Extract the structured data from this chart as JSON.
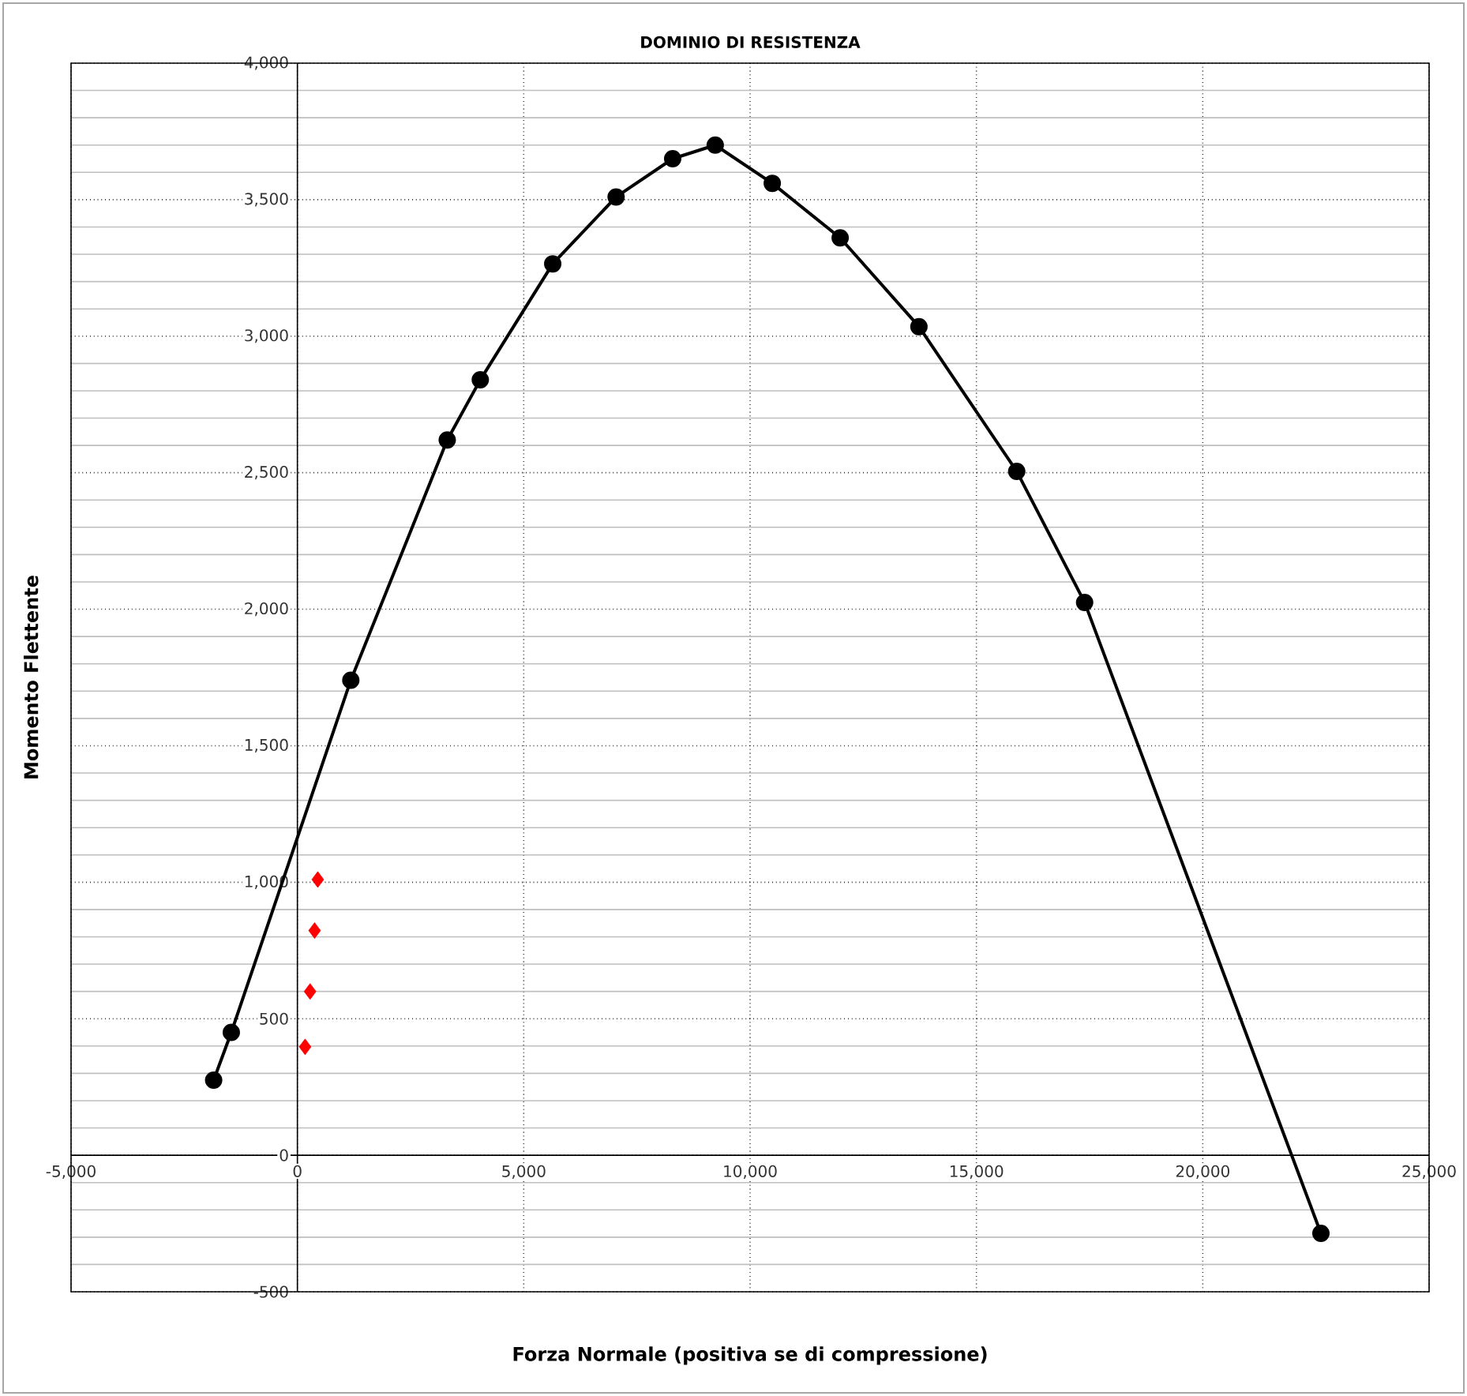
{
  "chart_data": {
    "type": "line",
    "title": "DOMINIO DI RESISTENZA",
    "xlabel": "Forza Normale (positiva se di compressione)",
    "ylabel": "Momento Flettente",
    "xlim": [
      -5000,
      25000
    ],
    "ylim": [
      -500,
      4000
    ],
    "xticks": [
      {
        "value": -5000,
        "label": "-5,000"
      },
      0,
      {
        "value": 5000,
        "label": "5,000"
      },
      {
        "value": 10000,
        "label": "10,000"
      },
      {
        "value": 15000,
        "label": "15,000"
      },
      {
        "value": 20000,
        "label": "20,000"
      },
      {
        "value": 25000,
        "label": "25,000"
      }
    ],
    "yticks": [
      -500,
      0,
      500,
      {
        "value": 1000,
        "label": "1,000"
      },
      {
        "value": 1500,
        "label": "1,500"
      },
      {
        "value": 2000,
        "label": "2,000"
      },
      {
        "value": 2500,
        "label": "2,500"
      },
      {
        "value": 3000,
        "label": "3,000"
      },
      {
        "value": 3500,
        "label": "3,500"
      },
      {
        "value": 4000,
        "label": "4,000"
      }
    ],
    "grid": true,
    "series": [
      {
        "color": "#000000",
        "marker": "circle",
        "x": [
          -1850,
          -1460,
          1180,
          3310,
          4040,
          5640,
          7040,
          8290,
          9230,
          10490,
          11990,
          13730,
          15890,
          17390,
          22610
        ],
        "values": [
          275,
          450,
          1740,
          2620,
          2840,
          3265,
          3510,
          3650,
          3700,
          3560,
          3360,
          3035,
          2505,
          2025,
          -286
        ]
      },
      {
        "type": "scatter",
        "color": "#ff0000",
        "marker": "diamond",
        "x": [
          170,
          280,
          380,
          450
        ],
        "values": [
          397,
          600,
          823,
          1010
        ]
      }
    ]
  }
}
